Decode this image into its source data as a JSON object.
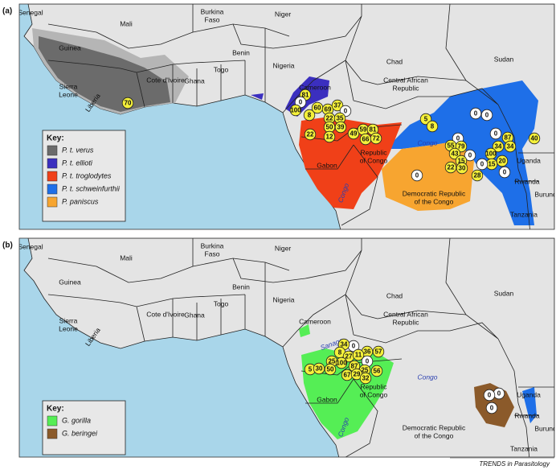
{
  "panels": [
    {
      "label": "(a)",
      "places": [
        [
          "Senegal"
        ],
        [
          "Mali"
        ],
        [
          "Burkina",
          "Faso"
        ],
        [
          "Niger"
        ],
        [
          "Guinea"
        ],
        [
          "Benin"
        ],
        [
          "Nigeria"
        ],
        [
          "Chad"
        ],
        [
          "Sudan"
        ],
        [
          "Sierra",
          "Leone"
        ],
        [
          "Cote d'Ivoire"
        ],
        [
          "Ghana"
        ],
        [
          "Togo"
        ],
        [
          "Cameroon"
        ],
        [
          "Central African",
          "Republic"
        ],
        [
          "Liberia"
        ],
        [
          "Republic",
          "of Congo"
        ],
        [
          "Gabon"
        ],
        [
          "Democratic Republic",
          "of the Congo"
        ],
        [
          "Uganda"
        ],
        [
          "Rwanda"
        ],
        [
          "Burundi"
        ],
        [
          "Tanzania"
        ]
      ],
      "rivers": [
        "Congo",
        "Congo"
      ],
      "key": {
        "title": "Key:",
        "items": [
          {
            "name": "P. t. verus",
            "color": "#6b6b6b"
          },
          {
            "name": "P. t. ellioti",
            "color": "#3b2fbf"
          },
          {
            "name": "P. t. troglodytes",
            "color": "#f04018"
          },
          {
            "name": "P. t. schweinfurthii",
            "color": "#1e6fe8"
          },
          {
            "name": "P. paniscus",
            "color": "#f7a530"
          }
        ]
      },
      "sites": [
        70,
        81,
        0,
        100,
        8,
        60,
        69,
        37,
        0,
        22,
        35,
        50,
        39,
        12,
        22,
        49,
        59,
        81,
        66,
        72,
        5,
        8,
        0,
        0,
        0,
        0,
        87,
        40,
        55,
        79,
        34,
        34,
        43,
        0,
        100,
        15,
        20,
        15,
        0,
        22,
        30,
        0,
        28,
        0
      ]
    },
    {
      "label": "(b)",
      "places": [
        [
          "Senegal"
        ],
        [
          "Mali"
        ],
        [
          "Burkina",
          "Faso"
        ],
        [
          "Niger"
        ],
        [
          "Guinea"
        ],
        [
          "Benin"
        ],
        [
          "Nigeria"
        ],
        [
          "Chad"
        ],
        [
          "Sudan"
        ],
        [
          "Sierra",
          "Leone"
        ],
        [
          "Cote d'Ivoire"
        ],
        [
          "Ghana"
        ],
        [
          "Togo"
        ],
        [
          "Cameroon"
        ],
        [
          "Central African",
          "Republic"
        ],
        [
          "Liberia"
        ],
        [
          "Republic",
          "of Congo"
        ],
        [
          "Gabon"
        ],
        [
          "Democratic Republic",
          "of the Congo"
        ],
        [
          "Uganda"
        ],
        [
          "Rwanda"
        ],
        [
          "Burundi"
        ],
        [
          "Tanzania"
        ]
      ],
      "rivers": [
        "Congo",
        "Congo",
        "Sanaga"
      ],
      "key": {
        "title": "Key:",
        "items": [
          {
            "name": "G. gorilla",
            "color": "#55ee55"
          },
          {
            "name": "G. beringei",
            "color": "#8b5a2a"
          }
        ]
      },
      "sites": [
        0,
        34,
        36,
        57,
        8,
        27,
        11,
        0,
        56,
        25,
        100,
        50,
        87,
        25,
        67,
        29,
        32,
        5,
        30,
        0,
        0,
        0
      ]
    }
  ],
  "footer": "TRENDS in Parasitology"
}
